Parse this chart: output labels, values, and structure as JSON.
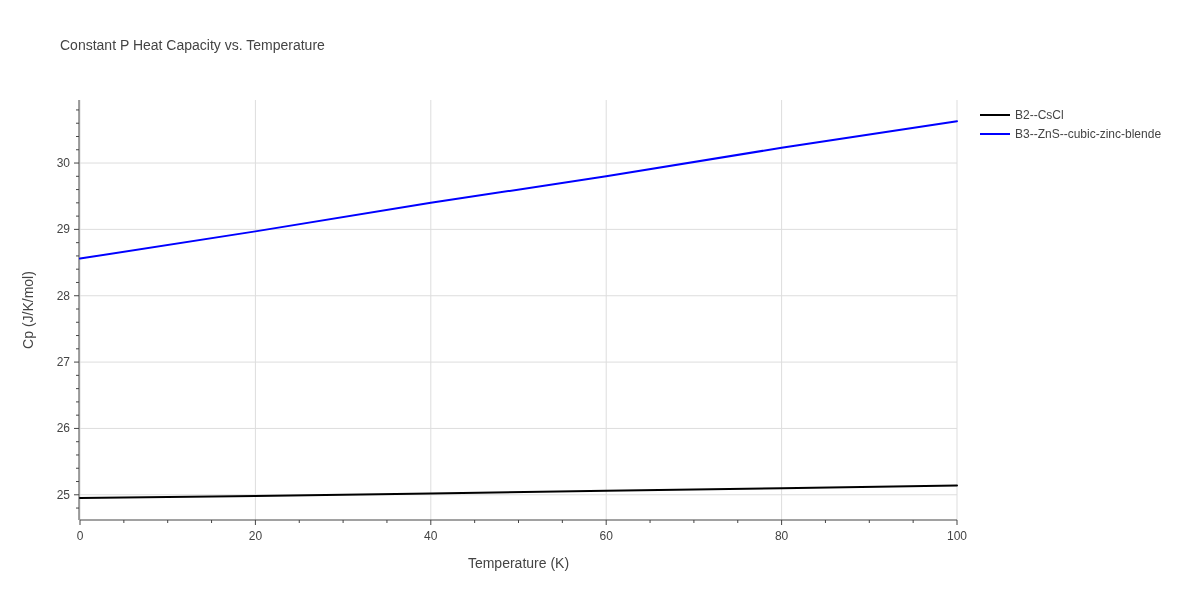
{
  "chart_data": {
    "type": "line",
    "title": "Constant P Heat Capacity vs. Temperature",
    "xlabel": "Temperature (K)",
    "ylabel": "Cp (J/K/mol)",
    "x": [
      0,
      20,
      40,
      60,
      80,
      100
    ],
    "series": [
      {
        "name": "B2--CsCl",
        "color": "#000000",
        "values": [
          24.95,
          24.98,
          25.02,
          25.06,
          25.1,
          25.14
        ]
      },
      {
        "name": "B3--ZnS--cubic-zinc-blende",
        "color": "#0000ff",
        "values": [
          28.56,
          28.97,
          29.4,
          29.8,
          30.23,
          30.63
        ]
      }
    ],
    "xlim": [
      0,
      100
    ],
    "ylim": [
      24.62,
      30.95
    ],
    "xticks": [
      0,
      {
        "value": 5,
        "label": null
      },
      {
        "value": 10,
        "label": null
      },
      {
        "value": 15,
        "label": null
      },
      20,
      {
        "value": 25,
        "label": null
      },
      {
        "value": 30,
        "label": null
      },
      {
        "value": 35,
        "label": null
      },
      40,
      {
        "value": 45,
        "label": null
      },
      {
        "value": 50,
        "label": null
      },
      {
        "value": 55,
        "label": null
      },
      60,
      {
        "value": 65,
        "label": null
      },
      {
        "value": 70,
        "label": null
      },
      {
        "value": 75,
        "label": null
      },
      80,
      {
        "value": 85,
        "label": null
      },
      {
        "value": 90,
        "label": null
      },
      {
        "value": 95,
        "label": null
      },
      100
    ],
    "yticks": [
      {
        "value": 24.8,
        "label": null
      },
      25,
      {
        "value": 25.2,
        "label": null
      },
      {
        "value": 25.4,
        "label": null
      },
      {
        "value": 25.6,
        "label": null
      },
      {
        "value": 25.8,
        "label": null
      },
      26,
      {
        "value": 26.2,
        "label": null
      },
      {
        "value": 26.4,
        "label": null
      },
      {
        "value": 26.6,
        "label": null
      },
      {
        "value": 26.8,
        "label": null
      },
      27,
      {
        "value": 27.2,
        "label": null
      },
      {
        "value": 27.4,
        "label": null
      },
      {
        "value": 27.6,
        "label": null
      },
      {
        "value": 27.8,
        "label": null
      },
      28,
      {
        "value": 28.2,
        "label": null
      },
      {
        "value": 28.4,
        "label": null
      },
      {
        "value": 28.6,
        "label": null
      },
      {
        "value": 28.8,
        "label": null
      },
      29,
      {
        "value": 29.2,
        "label": null
      },
      {
        "value": 29.4,
        "label": null
      },
      {
        "value": 29.6,
        "label": null
      },
      {
        "value": 29.8,
        "label": null
      },
      30,
      {
        "value": 30.2,
        "label": null
      },
      {
        "value": 30.4,
        "label": null
      },
      {
        "value": 30.6,
        "label": null
      },
      {
        "value": 30.8,
        "label": null
      }
    ],
    "grid": true,
    "legend": "top right",
    "line_style": "solid"
  }
}
